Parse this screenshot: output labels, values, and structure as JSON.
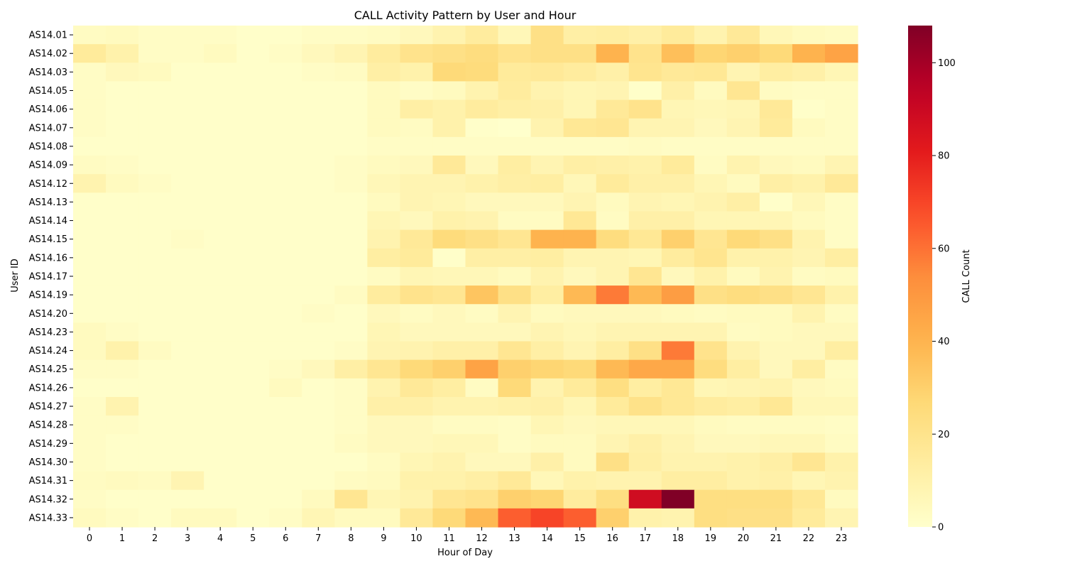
{
  "chart_data": {
    "type": "heatmap",
    "title": "CALL Activity Pattern by User and Hour",
    "xlabel": "Hour of Day",
    "ylabel": "User ID",
    "colorbar_label": "CALL Count",
    "colorbar_ticks": [
      0,
      20,
      40,
      60,
      80,
      100
    ],
    "vmin": 0,
    "vmax": 108,
    "colormap": "YlOrRd",
    "x": [
      "0",
      "1",
      "2",
      "3",
      "4",
      "5",
      "6",
      "7",
      "8",
      "9",
      "10",
      "11",
      "12",
      "13",
      "14",
      "15",
      "16",
      "17",
      "18",
      "19",
      "20",
      "21",
      "22",
      "23"
    ],
    "y": [
      "AS14.01",
      "AS14.02",
      "AS14.03",
      "AS14.05",
      "AS14.06",
      "AS14.07",
      "AS14.08",
      "AS14.09",
      "AS14.12",
      "AS14.13",
      "AS14.14",
      "AS14.15",
      "AS14.16",
      "AS14.17",
      "AS14.19",
      "AS14.20",
      "AS14.23",
      "AS14.24",
      "AS14.25",
      "AS14.26",
      "AS14.27",
      "AS14.28",
      "AS14.29",
      "AS14.30",
      "AS14.31",
      "AS14.32",
      "AS14.33"
    ],
    "values": [
      [
        3,
        4,
        2,
        2,
        2,
        1,
        1,
        2,
        2,
        3,
        5,
        9,
        14,
        6,
        22,
        12,
        13,
        11,
        15,
        9,
        16,
        6,
        4,
        3
      ],
      [
        15,
        10,
        2,
        2,
        4,
        1,
        2,
        5,
        8,
        14,
        20,
        22,
        24,
        20,
        22,
        22,
        40,
        20,
        36,
        28,
        30,
        26,
        40,
        46
      ],
      [
        2,
        5,
        4,
        1,
        1,
        1,
        1,
        2,
        3,
        12,
        10,
        26,
        25,
        15,
        16,
        14,
        11,
        19,
        16,
        17,
        8,
        13,
        11,
        7
      ],
      [
        2,
        1,
        1,
        1,
        1,
        1,
        1,
        1,
        1,
        4,
        2,
        4,
        9,
        14,
        9,
        7,
        8,
        1,
        11,
        4,
        18,
        3,
        2,
        2
      ],
      [
        2,
        1,
        1,
        1,
        1,
        1,
        1,
        1,
        1,
        4,
        12,
        10,
        14,
        12,
        11,
        7,
        16,
        20,
        7,
        6,
        7,
        16,
        1,
        2
      ],
      [
        2,
        1,
        1,
        1,
        1,
        1,
        1,
        1,
        1,
        4,
        3,
        10,
        1,
        0,
        9,
        17,
        18,
        8,
        8,
        5,
        8,
        15,
        4,
        2
      ],
      [
        1,
        1,
        1,
        1,
        1,
        1,
        1,
        1,
        1,
        2,
        2,
        2,
        2,
        2,
        2,
        2,
        2,
        3,
        2,
        2,
        2,
        2,
        2,
        2
      ],
      [
        3,
        2,
        1,
        1,
        1,
        1,
        1,
        1,
        2,
        4,
        5,
        16,
        5,
        13,
        8,
        12,
        11,
        10,
        15,
        3,
        9,
        5,
        4,
        8
      ],
      [
        9,
        4,
        2,
        1,
        1,
        1,
        1,
        1,
        2,
        6,
        8,
        8,
        10,
        12,
        13,
        6,
        15,
        11,
        11,
        7,
        4,
        12,
        10,
        16
      ],
      [
        1,
        1,
        1,
        1,
        1,
        1,
        1,
        1,
        1,
        4,
        8,
        7,
        5,
        5,
        5,
        8,
        4,
        8,
        7,
        9,
        12,
        1,
        6,
        2
      ],
      [
        1,
        1,
        1,
        1,
        1,
        1,
        1,
        1,
        1,
        7,
        5,
        10,
        9,
        3,
        3,
        17,
        3,
        11,
        11,
        7,
        7,
        7,
        4,
        2
      ],
      [
        1,
        1,
        1,
        2,
        1,
        1,
        1,
        1,
        1,
        9,
        16,
        25,
        22,
        18,
        40,
        40,
        24,
        17,
        30,
        18,
        26,
        22,
        9,
        2
      ],
      [
        1,
        1,
        1,
        1,
        1,
        1,
        1,
        1,
        1,
        13,
        15,
        1,
        12,
        12,
        13,
        8,
        8,
        7,
        14,
        19,
        10,
        10,
        8,
        13
      ],
      [
        1,
        1,
        1,
        1,
        1,
        1,
        1,
        1,
        1,
        3,
        7,
        6,
        6,
        4,
        9,
        5,
        8,
        18,
        5,
        10,
        4,
        9,
        3,
        4
      ],
      [
        1,
        1,
        1,
        1,
        1,
        1,
        1,
        1,
        3,
        14,
        20,
        18,
        34,
        22,
        13,
        38,
        58,
        38,
        48,
        22,
        24,
        22,
        18,
        10
      ],
      [
        1,
        1,
        1,
        1,
        1,
        1,
        1,
        2,
        1,
        5,
        3,
        5,
        3,
        8,
        4,
        5,
        5,
        5,
        4,
        3,
        4,
        4,
        9,
        3
      ],
      [
        4,
        2,
        1,
        1,
        1,
        1,
        1,
        1,
        1,
        7,
        5,
        5,
        5,
        5,
        8,
        6,
        8,
        8,
        8,
        8,
        3,
        4,
        5,
        5
      ],
      [
        4,
        10,
        3,
        1,
        1,
        1,
        1,
        1,
        2,
        8,
        9,
        11,
        11,
        18,
        12,
        8,
        13,
        22,
        58,
        20,
        9,
        5,
        5,
        13
      ],
      [
        2,
        2,
        1,
        1,
        1,
        1,
        2,
        5,
        12,
        18,
        26,
        30,
        46,
        30,
        28,
        26,
        38,
        44,
        44,
        24,
        13,
        5,
        13,
        3
      ],
      [
        1,
        1,
        1,
        1,
        1,
        1,
        4,
        1,
        2,
        9,
        16,
        13,
        3,
        26,
        9,
        15,
        23,
        13,
        17,
        7,
        8,
        9,
        5,
        4
      ],
      [
        2,
        9,
        1,
        1,
        1,
        1,
        1,
        1,
        2,
        11,
        11,
        9,
        9,
        10,
        11,
        7,
        15,
        21,
        17,
        14,
        13,
        17,
        6,
        6
      ],
      [
        2,
        2,
        1,
        1,
        1,
        1,
        1,
        1,
        2,
        5,
        5,
        3,
        3,
        2,
        7,
        5,
        6,
        6,
        6,
        4,
        3,
        3,
        3,
        2
      ],
      [
        2,
        1,
        1,
        1,
        1,
        1,
        1,
        1,
        3,
        5,
        5,
        6,
        6,
        2,
        4,
        4,
        8,
        11,
        8,
        5,
        5,
        6,
        6,
        3
      ],
      [
        2,
        1,
        1,
        1,
        1,
        1,
        1,
        1,
        1,
        3,
        7,
        9,
        5,
        5,
        11,
        4,
        22,
        12,
        9,
        9,
        10,
        12,
        18,
        10
      ],
      [
        3,
        4,
        3,
        8,
        1,
        1,
        1,
        1,
        3,
        4,
        10,
        10,
        12,
        16,
        6,
        10,
        9,
        9,
        13,
        13,
        10,
        11,
        7,
        9
      ],
      [
        2,
        1,
        1,
        1,
        1,
        1,
        1,
        4,
        18,
        7,
        9,
        18,
        20,
        30,
        28,
        14,
        23,
        88,
        108,
        23,
        23,
        23,
        17,
        4
      ],
      [
        4,
        2,
        1,
        4,
        4,
        1,
        2,
        7,
        4,
        4,
        16,
        26,
        38,
        64,
        70,
        64,
        30,
        10,
        9,
        23,
        22,
        22,
        15,
        8
      ]
    ]
  }
}
